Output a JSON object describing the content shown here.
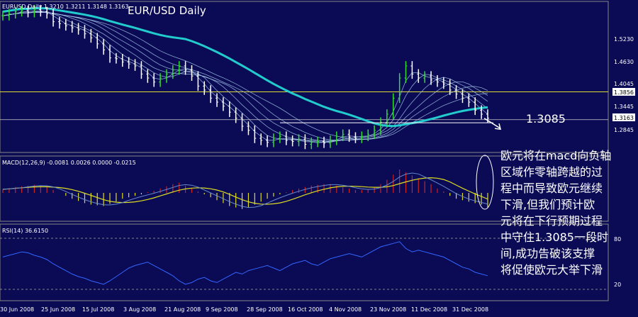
{
  "price_panel": {
    "info": "EURUSD,Daily  1.3210 1.3211 1.3148 1.3163",
    "title": "EUR/USD Daily",
    "target_label": "1.3085",
    "current_price": "1.3163",
    "highlight_price": "1.3856",
    "axis_labels": [
      "1.5230",
      "1.4630",
      "1.4045",
      "1.3445",
      "1.2845"
    ]
  },
  "macd_panel": {
    "info": "MACD(12,26,9) -0.0081 0.0026 0.0000 -0.0215"
  },
  "rsi_panel": {
    "info": "RSI(14) 36.6150",
    "axis_labels": [
      "80",
      "20"
    ]
  },
  "x_axis_labels": [
    "30 Jun 2008",
    "25 Jun 2008",
    "15 Jul 2008",
    "3 Aug 2008",
    "21 Aug 2008",
    "9 Sep 2008",
    "28 Sep 2008",
    "16 Oct 2008",
    "4 Nov 2008",
    "23 Nov 2008",
    "11 Dec 2008",
    "31 Dec 2008"
  ],
  "annotation_lines": [
    "欧元将在macd向负轴",
    "区域作零轴跨越的过",
    "程中而导致欧元继续",
    "下滑,但我们预计欧",
    "元将在下行预期过程",
    "中守住1.3085一段时",
    "间,成功告破该支撑",
    "将促使欧元大举下滑"
  ],
  "colors": {
    "background": "#0a0a55",
    "bull_bar": "#33dd33",
    "bear_bar": "#ffffff",
    "ma_long": "#22cccc",
    "ma_short": "#aaccee",
    "hline": "#dddd33",
    "macd_pos": "#cc2222",
    "macd_neg": "#dddd22",
    "macd_signal": "#dddd22",
    "macd_line": "#6688cc",
    "rsi_line": "#3366ff"
  },
  "chart_data": [
    {
      "type": "line",
      "title": "EUR/USD Daily",
      "series": [
        {
          "values": [
            1.575,
            1.58,
            1.585,
            1.588,
            1.583,
            1.59,
            1.585,
            1.58,
            1.56,
            1.555,
            1.55,
            1.545,
            1.54,
            1.53,
            1.52,
            1.505,
            1.49,
            1.47,
            1.468,
            1.46,
            1.455,
            1.45,
            1.43,
            1.42,
            1.41,
            1.42,
            1.43,
            1.44,
            1.45,
            1.44,
            1.425,
            1.4,
            1.39,
            1.37,
            1.36,
            1.35,
            1.335,
            1.32,
            1.3,
            1.29,
            1.27,
            1.265,
            1.26,
            1.27,
            1.275,
            1.265,
            1.262,
            1.268,
            1.255,
            1.26,
            1.262,
            1.258,
            1.265,
            1.275,
            1.28,
            1.273,
            1.27,
            1.275,
            1.28,
            1.29,
            1.31,
            1.33,
            1.37,
            1.42,
            1.45,
            1.43,
            1.42,
            1.425,
            1.415,
            1.41,
            1.405,
            1.39,
            1.38,
            1.37,
            1.36,
            1.34,
            1.33,
            1.32
          ]
        }
      ],
      "hlines": [
        1.3856,
        1.3163
      ],
      "target": 1.3085,
      "ylim": [
        1.24,
        1.6
      ]
    },
    {
      "type": "bar",
      "title": "MACD(12,26,9)",
      "values": [
        0.005,
        0.006,
        0.008,
        0.009,
        0.01,
        0.011,
        0.01,
        0.008,
        0.004,
        0.0,
        -0.004,
        -0.008,
        -0.011,
        -0.014,
        -0.016,
        -0.017,
        -0.018,
        -0.015,
        -0.012,
        -0.008,
        -0.006,
        -0.004,
        -0.002,
        0.001,
        0.003,
        0.006,
        0.009,
        0.012,
        0.014,
        0.01,
        0.006,
        0.002,
        -0.002,
        -0.006,
        -0.01,
        -0.014,
        -0.018,
        -0.02,
        -0.022,
        -0.02,
        -0.016,
        -0.012,
        -0.008,
        -0.005,
        -0.002,
        0.001,
        0.004,
        0.006,
        0.008,
        0.01,
        0.011,
        0.012,
        0.012,
        0.01,
        0.008,
        0.006,
        0.004,
        0.004,
        0.005,
        0.008,
        0.012,
        0.018,
        0.025,
        0.032,
        0.028,
        0.024,
        0.02,
        0.016,
        0.012,
        0.006,
        0.002,
        -0.004,
        -0.008,
        -0.01,
        -0.012,
        -0.014,
        -0.016,
        -0.02
      ],
      "ylim": [
        -0.035,
        0.035
      ]
    },
    {
      "type": "line",
      "title": "RSI(14)",
      "series": [
        {
          "values": [
            58,
            60,
            62,
            64,
            63,
            60,
            58,
            55,
            50,
            46,
            42,
            38,
            35,
            33,
            30,
            28,
            26,
            30,
            35,
            40,
            45,
            48,
            50,
            52,
            48,
            44,
            40,
            36,
            30,
            26,
            28,
            32,
            34,
            30,
            28,
            32,
            36,
            40,
            38,
            42,
            44,
            46,
            48,
            45,
            42,
            46,
            50,
            52,
            54,
            50,
            48,
            52,
            56,
            58,
            60,
            62,
            60,
            58,
            62,
            66,
            70,
            72,
            74,
            76,
            68,
            64,
            66,
            64,
            62,
            60,
            58,
            54,
            50,
            46,
            44,
            40,
            38,
            36
          ]
        }
      ],
      "ylim": [
        10,
        90
      ],
      "levels": [
        80,
        20
      ]
    }
  ]
}
